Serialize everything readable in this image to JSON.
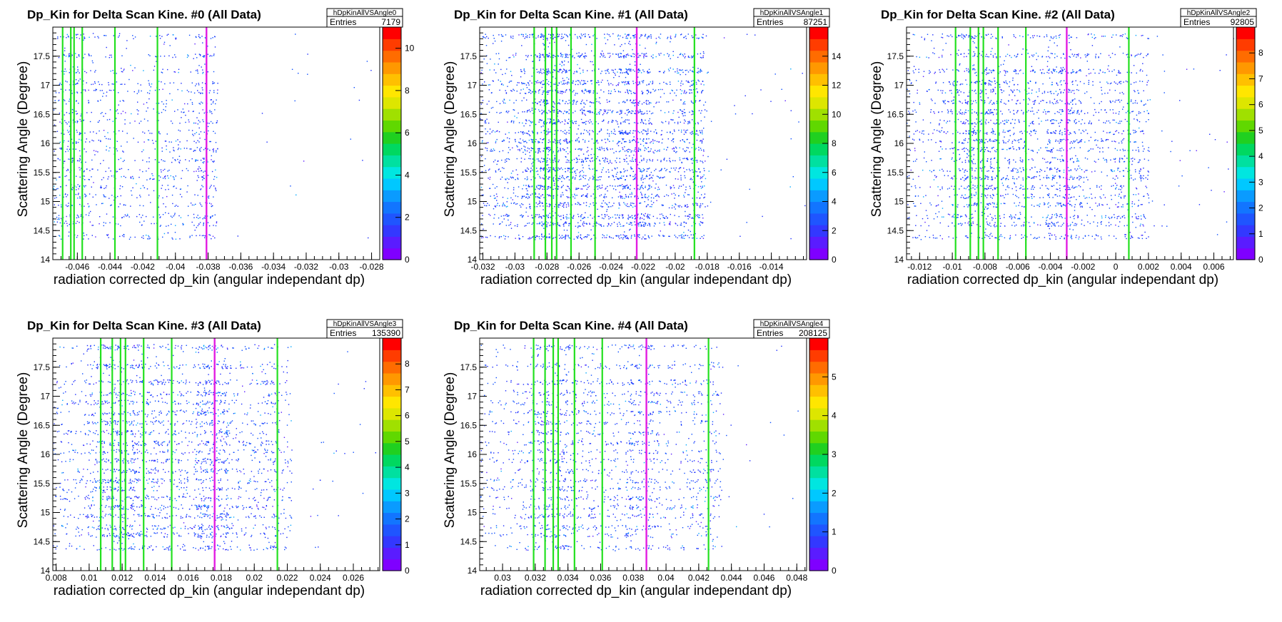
{
  "chart_data": [
    {
      "type": "heatmap",
      "title": "Dp_Kin for Delta Scan Kine. #0 (All Data)",
      "stats_name": "hDpKinAllVSAngle0",
      "entries_label": "Entries",
      "entries": "7179",
      "xlabel": "radiation corrected dp_kin (angular independant dp)",
      "ylabel": "Scattering Angle (Degree)",
      "xlim": [
        -0.0475,
        -0.0275
      ],
      "ylim": [
        14,
        18
      ],
      "xticks": [
        "-0.046",
        "-0.044",
        "-0.042",
        "-0.04",
        "-0.038",
        "-0.036",
        "-0.034",
        "-0.032",
        "-0.03",
        "-0.028"
      ],
      "yticks": [
        "14",
        "14.5",
        "15",
        "15.5",
        "16",
        "16.5",
        "17",
        "17.5"
      ],
      "zlim": [
        0,
        11
      ],
      "zticks": [
        "0",
        "2",
        "4",
        "6",
        "8",
        "10"
      ],
      "green_lines": [
        -0.0469,
        -0.0464,
        -0.0462,
        -0.0457,
        -0.0437,
        -0.0411
      ],
      "magenta_line": -0.0381,
      "data_x_range": [
        -0.0475,
        -0.0369
      ],
      "data_y_range": [
        14.35,
        17.9
      ],
      "density": 0.35
    },
    {
      "type": "heatmap",
      "title": "Dp_Kin for Delta Scan Kine. #1 (All Data)",
      "stats_name": "hDpKinAllVSAngle1",
      "entries_label": "Entries",
      "entries": "87251",
      "xlabel": "radiation corrected dp_kin (angular independant dp)",
      "ylabel": "Scattering Angle (Degree)",
      "xlim": [
        -0.0322,
        -0.0118
      ],
      "ylim": [
        14,
        18
      ],
      "xticks": [
        "-0.032",
        "-0.03",
        "-0.028",
        "-0.026",
        "-0.024",
        "-0.022",
        "-0.02",
        "-0.018",
        "-0.016",
        "-0.014"
      ],
      "yticks": [
        "14",
        "14.5",
        "15",
        "15.5",
        "16",
        "16.5",
        "17",
        "17.5"
      ],
      "zlim": [
        0,
        16
      ],
      "zticks": [
        "0",
        "2",
        "4",
        "6",
        "8",
        "10",
        "12",
        "14"
      ],
      "green_lines": [
        -0.0288,
        -0.0281,
        -0.0277,
        -0.0274,
        -0.0265,
        -0.025,
        -0.0188
      ],
      "magenta_line": -0.0224,
      "data_x_range": [
        -0.0322,
        -0.0175
      ],
      "data_y_range": [
        14.35,
        17.9
      ],
      "density": 1.0
    },
    {
      "type": "heatmap",
      "title": "Dp_Kin for Delta Scan Kine. #2 (All Data)",
      "stats_name": "hDpKinAllVSAngle2",
      "entries_label": "Entries",
      "entries": "92805",
      "xlabel": "radiation corrected dp_kin (angular independant dp)",
      "ylabel": "Scattering Angle (Degree)",
      "xlim": [
        -0.0128,
        0.0072
      ],
      "ylim": [
        14,
        18
      ],
      "xticks": [
        "-0.012",
        "-0.01",
        "-0.008",
        "-0.006",
        "-0.004",
        "-0.002",
        "0",
        "0.002",
        "0.004",
        "0.006"
      ],
      "yticks": [
        "14",
        "14.5",
        "15",
        "15.5",
        "16",
        "16.5",
        "17",
        "17.5"
      ],
      "zlim": [
        0,
        9
      ],
      "zticks": [
        "0",
        "1",
        "2",
        "3",
        "4",
        "5",
        "6",
        "7",
        "8"
      ],
      "green_lines": [
        -0.0098,
        -0.0089,
        -0.0084,
        -0.0081,
        -0.0072,
        -0.0055,
        0.0008
      ],
      "magenta_line": -0.003,
      "data_x_range": [
        -0.0128,
        0.0028
      ],
      "data_y_range": [
        14.35,
        17.9
      ],
      "density": 0.75
    },
    {
      "type": "heatmap",
      "title": "Dp_Kin for Delta Scan Kine. #3 (All Data)",
      "stats_name": "hDpKinAllVSAngle3",
      "entries_label": "Entries",
      "entries": "135390",
      "xlabel": "radiation corrected dp_kin (angular independant dp)",
      "ylabel": "Scattering Angle (Degree)",
      "xlim": [
        0.0078,
        0.0276
      ],
      "ylim": [
        14,
        18
      ],
      "xticks": [
        "0.008",
        "0.01",
        "0.012",
        "0.014",
        "0.016",
        "0.018",
        "0.02",
        "0.022",
        "0.024",
        "0.026"
      ],
      "yticks": [
        "14",
        "14.5",
        "15",
        "15.5",
        "16",
        "16.5",
        "17",
        "17.5"
      ],
      "zlim": [
        0,
        9
      ],
      "zticks": [
        "0",
        "1",
        "2",
        "3",
        "4",
        "5",
        "6",
        "7",
        "8"
      ],
      "green_lines": [
        0.0107,
        0.0114,
        0.0119,
        0.0122,
        0.0133,
        0.015,
        0.0214
      ],
      "magenta_line": 0.0176,
      "data_x_range": [
        0.0078,
        0.0222
      ],
      "data_y_range": [
        14.35,
        17.9
      ],
      "density": 0.75
    },
    {
      "type": "heatmap",
      "title": "Dp_Kin for Delta Scan Kine. #4 (All Data)",
      "stats_name": "hDpKinAllVSAngle4",
      "entries_label": "Entries",
      "entries": "208125",
      "xlabel": "radiation corrected dp_kin (angular independant dp)",
      "ylabel": "Scattering Angle (Degree)",
      "xlim": [
        0.0286,
        0.0486
      ],
      "ylim": [
        14,
        18
      ],
      "xticks": [
        "0.03",
        "0.032",
        "0.034",
        "0.036",
        "0.038",
        "0.04",
        "0.042",
        "0.044",
        "0.046",
        "0.048"
      ],
      "yticks": [
        "14",
        "14.5",
        "15",
        "15.5",
        "16",
        "16.5",
        "17",
        "17.5"
      ],
      "zlim": [
        0,
        6
      ],
      "zticks": [
        "0",
        "1",
        "2",
        "3",
        "4",
        "5"
      ],
      "green_lines": [
        0.0319,
        0.0326,
        0.0331,
        0.0334,
        0.0344,
        0.0361,
        0.0426
      ],
      "magenta_line": 0.0388,
      "data_x_range": [
        0.0286,
        0.044
      ],
      "data_y_range": [
        14.35,
        17.9
      ],
      "density": 0.55
    }
  ]
}
